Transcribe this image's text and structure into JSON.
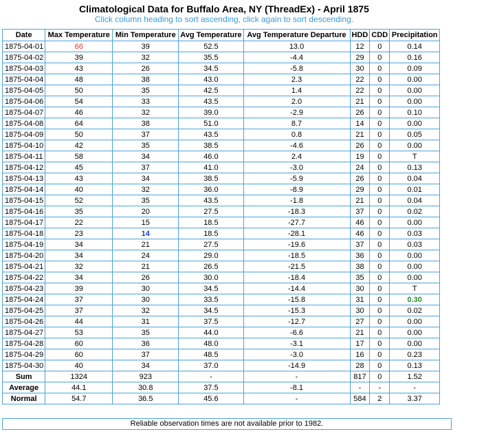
{
  "title": "Climatological Data for Buffalo Area, NY (ThreadEx) - April 1875",
  "subtitle": "Click column heading to sort ascending, click again to sort descending.",
  "columns": [
    "Date",
    "Max Temperature",
    "Min Temperature",
    "Avg Temperature",
    "Avg Temperature Departure",
    "HDD",
    "CDD",
    "Precipitation"
  ],
  "rows": [
    [
      "1875-04-01",
      "66",
      "39",
      "52.5",
      "13.0",
      "12",
      "0",
      "0.14"
    ],
    [
      "1875-04-02",
      "39",
      "32",
      "35.5",
      "-4.4",
      "29",
      "0",
      "0.16"
    ],
    [
      "1875-04-03",
      "43",
      "26",
      "34.5",
      "-5.8",
      "30",
      "0",
      "0.09"
    ],
    [
      "1875-04-04",
      "48",
      "38",
      "43.0",
      "2.3",
      "22",
      "0",
      "0.00"
    ],
    [
      "1875-04-05",
      "50",
      "35",
      "42.5",
      "1.4",
      "22",
      "0",
      "0.00"
    ],
    [
      "1875-04-06",
      "54",
      "33",
      "43.5",
      "2.0",
      "21",
      "0",
      "0.00"
    ],
    [
      "1875-04-07",
      "46",
      "32",
      "39.0",
      "-2.9",
      "26",
      "0",
      "0.10"
    ],
    [
      "1875-04-08",
      "64",
      "38",
      "51.0",
      "8.7",
      "14",
      "0",
      "0.00"
    ],
    [
      "1875-04-09",
      "50",
      "37",
      "43.5",
      "0.8",
      "21",
      "0",
      "0.05"
    ],
    [
      "1875-04-10",
      "42",
      "35",
      "38.5",
      "-4.6",
      "26",
      "0",
      "0.00"
    ],
    [
      "1875-04-11",
      "58",
      "34",
      "46.0",
      "2.4",
      "19",
      "0",
      "T"
    ],
    [
      "1875-04-12",
      "45",
      "37",
      "41.0",
      "-3.0",
      "24",
      "0",
      "0.13"
    ],
    [
      "1875-04-13",
      "43",
      "34",
      "38.5",
      "-5.9",
      "26",
      "0",
      "0.04"
    ],
    [
      "1875-04-14",
      "40",
      "32",
      "36.0",
      "-8.9",
      "29",
      "0",
      "0.01"
    ],
    [
      "1875-04-15",
      "52",
      "35",
      "43.5",
      "-1.8",
      "21",
      "0",
      "0.04"
    ],
    [
      "1875-04-16",
      "35",
      "20",
      "27.5",
      "-18.3",
      "37",
      "0",
      "0.02"
    ],
    [
      "1875-04-17",
      "22",
      "15",
      "18.5",
      "-27.7",
      "46",
      "0",
      "0.00"
    ],
    [
      "1875-04-18",
      "23",
      "14",
      "18.5",
      "-28.1",
      "46",
      "0",
      "0.03"
    ],
    [
      "1875-04-19",
      "34",
      "21",
      "27.5",
      "-19.6",
      "37",
      "0",
      "0.03"
    ],
    [
      "1875-04-20",
      "34",
      "24",
      "29.0",
      "-18.5",
      "36",
      "0",
      "0.00"
    ],
    [
      "1875-04-21",
      "32",
      "21",
      "26.5",
      "-21.5",
      "38",
      "0",
      "0.00"
    ],
    [
      "1875-04-22",
      "34",
      "26",
      "30.0",
      "-18.4",
      "35",
      "0",
      "0.00"
    ],
    [
      "1875-04-23",
      "39",
      "30",
      "34.5",
      "-14.4",
      "30",
      "0",
      "T"
    ],
    [
      "1875-04-24",
      "37",
      "30",
      "33.5",
      "-15.8",
      "31",
      "0",
      "0.30"
    ],
    [
      "1875-04-25",
      "37",
      "32",
      "34.5",
      "-15.3",
      "30",
      "0",
      "0.02"
    ],
    [
      "1875-04-26",
      "44",
      "31",
      "37.5",
      "-12.7",
      "27",
      "0",
      "0.00"
    ],
    [
      "1875-04-27",
      "53",
      "35",
      "44.0",
      "-6.6",
      "21",
      "0",
      "0.00"
    ],
    [
      "1875-04-28",
      "60",
      "36",
      "48.0",
      "-3.1",
      "17",
      "0",
      "0.00"
    ],
    [
      "1875-04-29",
      "60",
      "37",
      "48.5",
      "-3.0",
      "16",
      "0",
      "0.23"
    ],
    [
      "1875-04-30",
      "40",
      "34",
      "37.0",
      "-14.9",
      "28",
      "0",
      "0.13"
    ]
  ],
  "summary": [
    [
      "Sum",
      "1324",
      "923",
      "-",
      "-",
      "817",
      "0",
      "1.52"
    ],
    [
      "Average",
      "44.1",
      "30.8",
      "37.5",
      "-8.1",
      "-",
      "-",
      "-"
    ],
    [
      "Normal",
      "54.7",
      "36.5",
      "45.6",
      "-",
      "584",
      "2",
      "3.37"
    ]
  ],
  "highlights": {
    "max_temp_row": 0,
    "max_temp_color": "#e03030",
    "min_temp_row": 17,
    "min_temp_color": "#1a3fd0",
    "max_precip_row": 23,
    "max_precip_color": "#2a8a2a"
  },
  "footer_note": "Reliable observation times are not available prior to 1982."
}
